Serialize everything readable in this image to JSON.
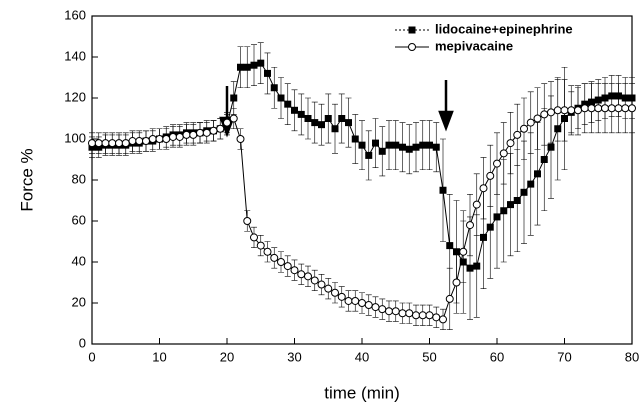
{
  "chart_data": {
    "type": "line",
    "x_label": "time (min)",
    "y_label": "Force %",
    "x": [
      0,
      1,
      2,
      3,
      4,
      5,
      6,
      7,
      8,
      9,
      10,
      11,
      12,
      13,
      14,
      15,
      16,
      17,
      18,
      19,
      20,
      21,
      22,
      23,
      24,
      25,
      26,
      27,
      28,
      29,
      30,
      31,
      32,
      33,
      34,
      35,
      36,
      37,
      38,
      39,
      40,
      41,
      42,
      43,
      44,
      45,
      46,
      47,
      48,
      49,
      50,
      51,
      52,
      53,
      54,
      55,
      56,
      57,
      58,
      59,
      60,
      61,
      62,
      63,
      64,
      65,
      66,
      67,
      68,
      69,
      70,
      71,
      72,
      73,
      74,
      75,
      76,
      77,
      78,
      79,
      80
    ],
    "series": [
      {
        "name": "lidocaine+epinephrine",
        "color": "#000000",
        "marker": "square",
        "values": [
          96,
          96,
          97,
          97,
          97,
          97,
          98,
          98,
          99,
          99,
          100,
          101,
          102,
          102,
          103,
          103,
          103,
          104,
          104,
          105,
          107,
          120,
          135,
          135,
          136,
          137,
          132,
          125,
          120,
          117,
          114,
          112,
          110,
          108,
          107,
          110,
          105,
          110,
          108,
          100,
          97,
          92,
          98,
          94,
          97,
          97,
          96,
          95,
          96,
          97,
          97,
          96,
          75,
          48,
          45,
          40,
          37,
          38,
          52,
          57,
          62,
          65,
          68,
          70,
          74,
          78,
          83,
          90,
          96,
          105,
          110,
          113,
          115,
          117,
          118,
          119,
          120,
          121,
          121,
          120,
          120
        ],
        "errors": [
          5,
          5,
          5,
          5,
          5,
          5,
          5,
          5,
          5,
          5,
          5,
          5,
          5,
          5,
          5,
          5,
          5,
          5,
          5,
          5,
          5,
          8,
          10,
          10,
          10,
          10,
          10,
          10,
          10,
          10,
          10,
          10,
          10,
          10,
          10,
          12,
          12,
          12,
          12,
          12,
          12,
          12,
          12,
          12,
          12,
          12,
          12,
          12,
          12,
          12,
          12,
          12,
          25,
          25,
          25,
          25,
          25,
          25,
          25,
          25,
          25,
          25,
          25,
          25,
          25,
          25,
          25,
          25,
          25,
          25,
          25,
          10,
          10,
          10,
          10,
          10,
          10,
          10,
          10,
          10,
          10
        ]
      },
      {
        "name": "mepivacaine",
        "color": "#000000",
        "marker": "circle",
        "values": [
          98,
          98,
          98,
          98,
          98,
          98,
          99,
          99,
          99,
          100,
          100,
          100,
          101,
          101,
          102,
          102,
          103,
          103,
          104,
          105,
          108,
          110,
          100,
          60,
          52,
          48,
          45,
          42,
          40,
          38,
          36,
          34,
          33,
          31,
          29,
          27,
          25,
          23,
          21,
          21,
          20,
          19,
          18,
          17,
          16,
          16,
          15,
          15,
          14,
          14,
          14,
          13,
          12,
          22,
          30,
          45,
          58,
          68,
          76,
          82,
          88,
          93,
          98,
          102,
          105,
          108,
          110,
          112,
          113,
          114,
          114,
          114,
          114,
          115,
          115,
          115,
          115,
          115,
          115,
          115,
          115
        ],
        "errors": [
          5,
          5,
          5,
          5,
          5,
          5,
          5,
          5,
          5,
          5,
          5,
          5,
          5,
          5,
          5,
          5,
          5,
          5,
          5,
          5,
          5,
          5,
          5,
          5,
          5,
          5,
          5,
          5,
          5,
          5,
          5,
          5,
          5,
          5,
          5,
          5,
          5,
          5,
          5,
          5,
          5,
          5,
          5,
          5,
          5,
          5,
          5,
          5,
          5,
          5,
          5,
          5,
          5,
          15,
          15,
          15,
          15,
          15,
          15,
          15,
          15,
          15,
          15,
          15,
          15,
          15,
          15,
          15,
          15,
          15,
          15,
          12,
          12,
          12,
          12,
          12,
          12,
          12,
          12,
          12,
          12
        ]
      }
    ],
    "xlim": [
      0,
      80
    ],
    "ylim": [
      0,
      160
    ],
    "xticks": [
      0,
      10,
      20,
      30,
      40,
      50,
      60,
      70,
      80
    ],
    "yticks": [
      0,
      20,
      40,
      60,
      80,
      100,
      120,
      140,
      160
    ],
    "legend": "upper right"
  }
}
